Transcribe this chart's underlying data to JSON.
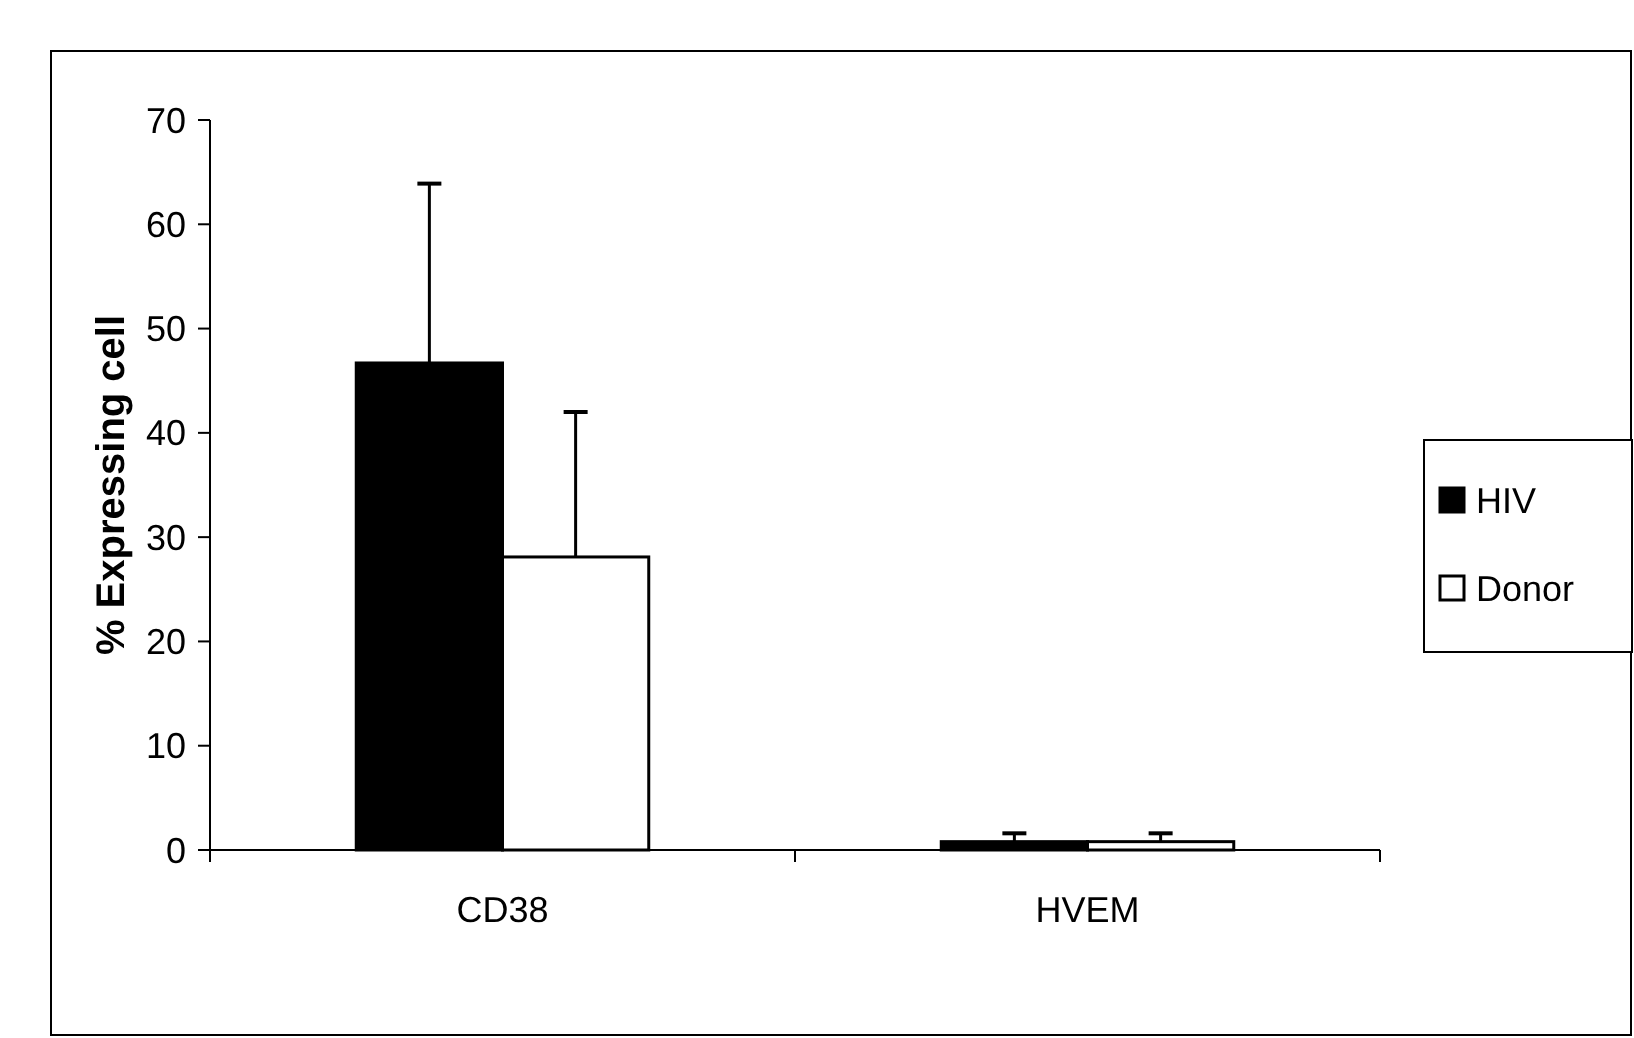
{
  "chart_data": {
    "type": "bar",
    "ylabel": "% Expressing cell",
    "categories": [
      "CD38",
      "HVEM"
    ],
    "series": [
      {
        "name": "HIV",
        "color": "#000000",
        "values": [
          46.7,
          0.8
        ],
        "errors": [
          [
            46.7,
            63.9
          ],
          [
            0.8,
            1.6
          ]
        ]
      },
      {
        "name": "Donor",
        "color": "#ffffff",
        "values": [
          28.1,
          0.8
        ],
        "errors": [
          [
            28.1,
            42.0
          ],
          [
            0.8,
            1.6
          ]
        ]
      }
    ],
    "ylim": [
      0,
      70
    ],
    "yticks": [
      0,
      10,
      20,
      30,
      40,
      50,
      60,
      70
    ],
    "grid": false,
    "legend": "right"
  }
}
